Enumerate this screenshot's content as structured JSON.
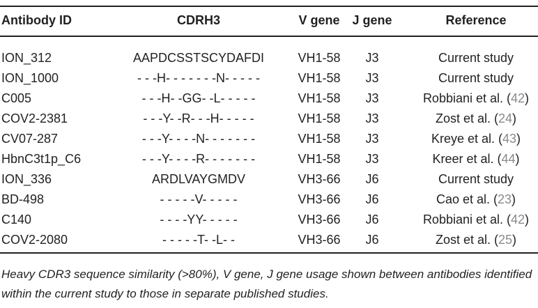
{
  "table": {
    "header": [
      "Antibody ID",
      "CDRH3",
      "V gene",
      "J gene",
      "Reference"
    ],
    "rows": [
      [
        "ION_312",
        "AAPDCSSTSCYDAFDI",
        "VH1-58",
        "J3",
        [
          "Current study"
        ]
      ],
      [
        "ION_1000",
        "- - -H- - - - - - -N- - - - -",
        "VH1-58",
        "J3",
        [
          "Current study"
        ]
      ],
      [
        "C005",
        "- - -H- -GG- -L- - - - -",
        "VH1-58",
        "J3",
        [
          "Robbiani et al. (",
          "42",
          ")"
        ]
      ],
      [
        "COV2-2381",
        "- - -Y- -R- - -H- - - - -",
        "VH1-58",
        "J3",
        [
          "Zost et al. (",
          "24",
          ")"
        ]
      ],
      [
        "CV07-287",
        "- - -Y- - - -N- - - - - - -",
        "VH1-58",
        "J3",
        [
          "Kreye et al. (",
          "43",
          ")"
        ]
      ],
      [
        "HbnC3t1p_C6",
        "- - -Y- - - -R- - - - - - -",
        "VH1-58",
        "J3",
        [
          "Kreer et al. (",
          "44",
          ")"
        ]
      ],
      [
        "ION_336",
        "ARDLVAYGMDV",
        "VH3-66",
        "J6",
        [
          "Current study"
        ]
      ],
      [
        "BD-498",
        "- - - - -V- - - - -",
        "VH3-66",
        "J6",
        [
          "Cao et al. (",
          "23",
          ")"
        ]
      ],
      [
        "C140",
        "- - - -YY- - - - -",
        "VH3-66",
        "J6",
        [
          "Robbiani et al. (",
          "42",
          ")"
        ]
      ],
      [
        "COV2-2080",
        "- - - - -T- -L- -",
        "VH3-66",
        "J6",
        [
          "Zost et al. (",
          "25",
          ")"
        ]
      ]
    ],
    "caption": "Heavy CDR3 sequence similarity (>80%), V gene, J gene usage shown between antibodies identified within the current study to those in separate published studies."
  }
}
